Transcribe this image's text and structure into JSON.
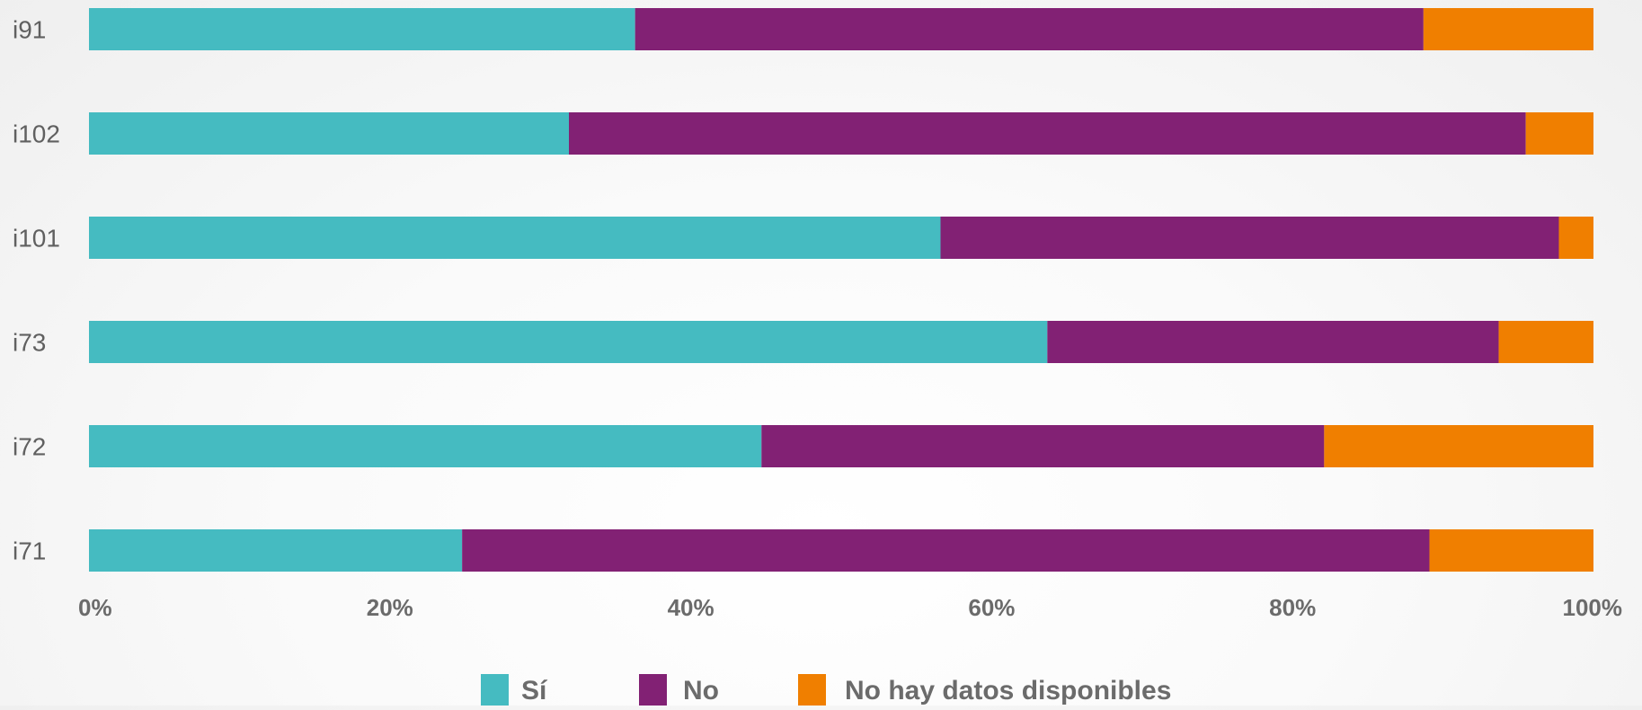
{
  "chart_data": {
    "type": "bar",
    "orientation": "horizontal",
    "stacked": "percent",
    "categories": [
      "i91",
      "i102",
      "i101",
      "i73",
      "i72",
      "i71"
    ],
    "series": [
      {
        "name": "Sí",
        "color": "#45BBC1",
        "values": [
          36.3,
          31.9,
          56.6,
          63.7,
          44.7,
          24.8
        ]
      },
      {
        "name": "No",
        "color": "#822174",
        "values": [
          52.4,
          63.6,
          41.1,
          30.0,
          37.4,
          64.3
        ]
      },
      {
        "name": "No hay datos disponibles",
        "color": "#F07F00",
        "values": [
          11.3,
          4.5,
          2.3,
          6.3,
          17.9,
          10.9
        ]
      }
    ],
    "xlim": [
      0,
      100
    ],
    "x_ticks": [
      "0%",
      "20%",
      "40%",
      "60%",
      "80%",
      "100%"
    ],
    "x_tick_values": [
      0,
      20,
      40,
      60,
      80,
      100
    ],
    "title": "",
    "xlabel": "",
    "ylabel": "",
    "grid": false,
    "legend": "bottom"
  }
}
